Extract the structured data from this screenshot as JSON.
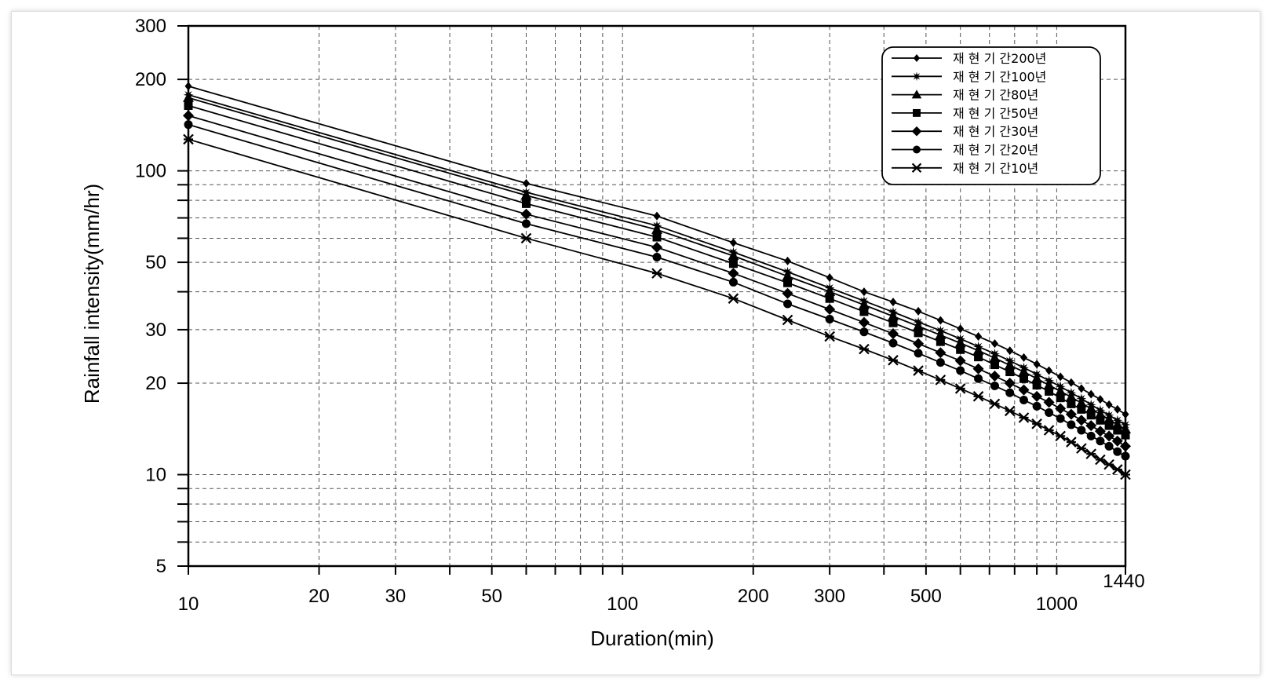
{
  "chart_data": {
    "type": "line",
    "xlabel": "Duration(min)",
    "ylabel": "Rainfall intensity(mm/hr)",
    "x_scale": "log",
    "y_scale": "log",
    "xlim": [
      10,
      1440
    ],
    "ylim": [
      5,
      300
    ],
    "grid": true,
    "legend_position": "top-right",
    "x_tick_labels": [
      {
        "value": 10,
        "label": "10"
      },
      {
        "value": 20,
        "label": "20"
      },
      {
        "value": 30,
        "label": "30"
      },
      {
        "value": 50,
        "label": "50"
      },
      {
        "value": 100,
        "label": "100"
      },
      {
        "value": 200,
        "label": "200"
      },
      {
        "value": 300,
        "label": "300"
      },
      {
        "value": 500,
        "label": "500"
      },
      {
        "value": 1000,
        "label": "1000"
      },
      {
        "value": 1440,
        "label": "1440"
      }
    ],
    "y_tick_labels": [
      {
        "value": 5,
        "label": "5"
      },
      {
        "value": 10,
        "label": "10"
      },
      {
        "value": 20,
        "label": "20"
      },
      {
        "value": 30,
        "label": "30"
      },
      {
        "value": 50,
        "label": "50"
      },
      {
        "value": 100,
        "label": "100"
      },
      {
        "value": 200,
        "label": "200"
      },
      {
        "value": 300,
        "label": "300"
      }
    ],
    "x": [
      10,
      60,
      120,
      180,
      240,
      300,
      360,
      420,
      480,
      540,
      600,
      660,
      720,
      780,
      840,
      900,
      960,
      1020,
      1080,
      1140,
      1200,
      1260,
      1320,
      1380,
      1440
    ],
    "series": [
      {
        "name": "재 현 기 간200년",
        "marker": "diamond-small",
        "values": [
          190,
          91,
          71,
          58,
          50.5,
          44.5,
          40,
          37,
          34.5,
          32.2,
          30.2,
          28.5,
          27,
          25.6,
          24.3,
          23.1,
          22,
          21,
          20.1,
          19.2,
          18.4,
          17.7,
          17,
          16.4,
          15.8
        ]
      },
      {
        "name": "재 현 기 간100년",
        "marker": "star",
        "values": [
          178,
          85,
          66,
          54,
          46.5,
          41.2,
          37.3,
          34.3,
          31.8,
          29.8,
          28,
          26.4,
          25,
          23.7,
          22.5,
          21.4,
          20.4,
          19.5,
          18.6,
          17.8,
          17,
          16.3,
          15.7,
          15.1,
          14.6
        ]
      },
      {
        "name": "재 현 기 간80년",
        "marker": "triangle",
        "values": [
          174,
          83,
          64,
          52.5,
          45,
          40,
          36.2,
          33.2,
          30.8,
          28.8,
          27.1,
          25.6,
          24.2,
          22.9,
          21.8,
          20.7,
          19.7,
          18.8,
          18,
          17.2,
          16.5,
          15.8,
          15.2,
          14.6,
          14.1
        ]
      },
      {
        "name": "재 현 기 간50년",
        "marker": "square",
        "values": [
          164,
          78,
          60.5,
          49.5,
          42.8,
          38,
          34.4,
          31.6,
          29.3,
          27.4,
          25.8,
          24.4,
          23,
          21.8,
          20.7,
          19.7,
          18.8,
          17.9,
          17.1,
          16.4,
          15.7,
          15.1,
          14.5,
          14,
          13.5
        ]
      },
      {
        "name": "재 현 기 간30년",
        "marker": "diamond",
        "values": [
          152,
          72,
          56,
          46,
          39.5,
          35,
          31.7,
          29.1,
          27,
          25.2,
          23.7,
          22.3,
          21.1,
          20,
          19,
          18.1,
          17.3,
          16.5,
          15.8,
          15.1,
          14.5,
          13.9,
          13.4,
          12.9,
          12.4
        ]
      },
      {
        "name": "재 현 기 간20년",
        "marker": "circle",
        "values": [
          142,
          67,
          52,
          43,
          36.5,
          32.5,
          29.5,
          27.1,
          25.1,
          23.4,
          22,
          20.7,
          19.6,
          18.6,
          17.6,
          16.8,
          16,
          15.3,
          14.6,
          14,
          13.4,
          12.9,
          12.4,
          11.9,
          11.5
        ]
      },
      {
        "name": "재 현 기 간10년",
        "marker": "x-star",
        "values": [
          127,
          60,
          46,
          38,
          32.3,
          28.5,
          25.9,
          23.8,
          22,
          20.5,
          19.2,
          18.1,
          17.1,
          16.2,
          15.4,
          14.7,
          14,
          13.4,
          12.8,
          12.2,
          11.7,
          11.2,
          10.8,
          10.4,
          10
        ]
      }
    ]
  }
}
